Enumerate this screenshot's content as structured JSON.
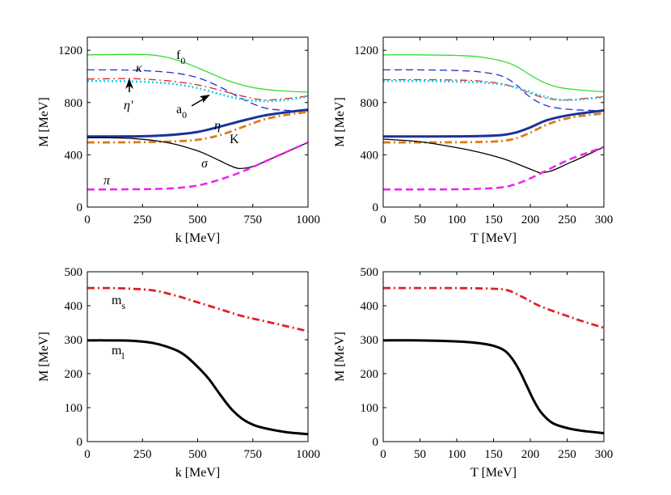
{
  "chart_data": [
    {
      "type": "line",
      "panel": "top-left",
      "xlabel": "k [MeV]",
      "ylabel": "M [MeV]",
      "xlim": [
        0,
        1000
      ],
      "ylim": [
        0,
        1300
      ],
      "xticks": [
        "0",
        "250",
        "500",
        "750",
        "1000"
      ],
      "yticks": [
        "0",
        "400",
        "800",
        "1200"
      ],
      "series": [
        {
          "name": "f0",
          "color": "#33dd33",
          "style": "solid",
          "x": [
            0,
            100,
            250,
            350,
            450,
            550,
            650,
            750,
            850,
            950,
            1000
          ],
          "y": [
            1165,
            1167,
            1168,
            1150,
            1100,
            1030,
            960,
            915,
            893,
            883,
            880
          ]
        },
        {
          "name": "kappa",
          "color": "#2233cc",
          "style": "dashed",
          "x": [
            0,
            100,
            200,
            300,
            400,
            500,
            600,
            700,
            800,
            900,
            1000
          ],
          "y": [
            1050,
            1050,
            1048,
            1040,
            1025,
            990,
            920,
            830,
            760,
            740,
            735
          ]
        },
        {
          "name": "a0",
          "color": "#dd2222",
          "style": "dashdot",
          "x": [
            0,
            100,
            200,
            300,
            400,
            500,
            600,
            700,
            800,
            900,
            1000
          ],
          "y": [
            980,
            982,
            983,
            975,
            960,
            935,
            895,
            850,
            820,
            830,
            850
          ]
        },
        {
          "name": "eta-prime",
          "color": "#22ccee",
          "style": "dotted",
          "x": [
            0,
            100,
            200,
            300,
            400,
            500,
            600,
            700,
            800,
            900,
            1000
          ],
          "y": [
            965,
            965,
            962,
            955,
            940,
            910,
            865,
            825,
            810,
            820,
            845
          ]
        },
        {
          "name": "eta",
          "color": "#1a3399",
          "style": "thick",
          "x": [
            0,
            100,
            200,
            300,
            400,
            500,
            600,
            700,
            800,
            900,
            1000
          ],
          "y": [
            540,
            540,
            541,
            545,
            555,
            575,
            615,
            660,
            700,
            725,
            745
          ]
        },
        {
          "name": "K",
          "color": "#d97d1a",
          "style": "dashdot-thick",
          "x": [
            0,
            100,
            200,
            300,
            400,
            500,
            600,
            700,
            800,
            900,
            1000
          ],
          "y": [
            495,
            495,
            496,
            498,
            503,
            515,
            550,
            610,
            670,
            705,
            728
          ]
        },
        {
          "name": "sigma",
          "color": "#000000",
          "style": "solid",
          "x": [
            0,
            100,
            200,
            300,
            400,
            500,
            550,
            600,
            650,
            690,
            750,
            800,
            900,
            1000
          ],
          "y": [
            530,
            530,
            525,
            510,
            480,
            430,
            395,
            355,
            315,
            295,
            310,
            345,
            420,
            495
          ]
        },
        {
          "name": "pi",
          "color": "#ee22ee",
          "style": "dashed-thick",
          "x": [
            0,
            100,
            200,
            300,
            400,
            500,
            600,
            700,
            800,
            900,
            1000
          ],
          "y": [
            135,
            135,
            136,
            138,
            145,
            165,
            210,
            270,
            345,
            420,
            495
          ]
        }
      ],
      "labels": {
        "f0": "f",
        "f0_sub": "0",
        "kappa": "κ",
        "eta_prime": "η'",
        "a0": "a",
        "a0_sub": "0",
        "eta": "η",
        "K": "K",
        "sigma": "σ",
        "pi": "π"
      }
    },
    {
      "type": "line",
      "panel": "top-right",
      "xlabel": "T [MeV]",
      "ylabel": "M [MeV]",
      "xlim": [
        0,
        300
      ],
      "ylim": [
        0,
        1300
      ],
      "xticks": [
        "0",
        "50",
        "100",
        "150",
        "200",
        "250",
        "300"
      ],
      "yticks": [
        "0",
        "400",
        "800",
        "1200"
      ],
      "series": [
        {
          "name": "f0",
          "color": "#33dd33",
          "style": "solid",
          "x": [
            0,
            50,
            100,
            130,
            160,
            180,
            200,
            220,
            240,
            260,
            280,
            300
          ],
          "y": [
            1165,
            1165,
            1160,
            1150,
            1120,
            1080,
            1010,
            950,
            915,
            900,
            890,
            883
          ]
        },
        {
          "name": "kappa",
          "color": "#2233cc",
          "style": "dashed",
          "x": [
            0,
            50,
            100,
            130,
            160,
            180,
            200,
            220,
            240,
            260,
            280,
            300
          ],
          "y": [
            1050,
            1050,
            1045,
            1035,
            1005,
            940,
            840,
            780,
            755,
            745,
            740,
            738
          ]
        },
        {
          "name": "a0",
          "color": "#dd2222",
          "style": "dashdot",
          "x": [
            0,
            50,
            100,
            130,
            160,
            180,
            200,
            220,
            240,
            260,
            280,
            300
          ],
          "y": [
            975,
            975,
            972,
            965,
            945,
            915,
            870,
            835,
            820,
            825,
            835,
            845
          ]
        },
        {
          "name": "eta-prime",
          "color": "#22ccee",
          "style": "dotted",
          "x": [
            0,
            50,
            100,
            130,
            160,
            180,
            200,
            220,
            240,
            260,
            280,
            300
          ],
          "y": [
            965,
            965,
            960,
            955,
            940,
            915,
            880,
            845,
            820,
            820,
            830,
            840
          ]
        },
        {
          "name": "eta",
          "color": "#1a3399",
          "style": "thick",
          "x": [
            0,
            50,
            100,
            130,
            160,
            180,
            200,
            220,
            240,
            260,
            280,
            300
          ],
          "y": [
            540,
            540,
            541,
            543,
            550,
            570,
            610,
            660,
            690,
            710,
            725,
            740
          ]
        },
        {
          "name": "K",
          "color": "#d97d1a",
          "style": "dashdot-thick",
          "x": [
            0,
            50,
            100,
            130,
            160,
            180,
            200,
            220,
            240,
            260,
            280,
            300
          ],
          "y": [
            495,
            495,
            496,
            498,
            505,
            525,
            570,
            625,
            665,
            690,
            705,
            718
          ]
        },
        {
          "name": "sigma",
          "color": "#000000",
          "style": "solid",
          "x": [
            0,
            50,
            100,
            130,
            160,
            180,
            200,
            210,
            215,
            230,
            250,
            270,
            300
          ],
          "y": [
            520,
            500,
            455,
            420,
            375,
            335,
            290,
            268,
            262,
            280,
            330,
            380,
            460
          ]
        },
        {
          "name": "pi",
          "color": "#ee22ee",
          "style": "dashed-thick",
          "x": [
            0,
            50,
            100,
            130,
            160,
            180,
            200,
            220,
            240,
            260,
            280,
            300
          ],
          "y": [
            135,
            135,
            136,
            140,
            150,
            175,
            220,
            275,
            330,
            380,
            420,
            460
          ]
        }
      ]
    },
    {
      "type": "line",
      "panel": "bottom-left",
      "xlabel": "k [MeV]",
      "ylabel": "M [MeV]",
      "xlim": [
        0,
        1000
      ],
      "ylim": [
        0,
        500
      ],
      "xticks": [
        "0",
        "250",
        "500",
        "750",
        "1000"
      ],
      "yticks": [
        "0",
        "100",
        "200",
        "300",
        "400",
        "500"
      ],
      "series": [
        {
          "name": "ms",
          "color": "#dd2222",
          "style": "dashdot-thick",
          "x": [
            0,
            100,
            200,
            300,
            400,
            500,
            600,
            700,
            800,
            900,
            1000
          ],
          "y": [
            452,
            452,
            450,
            445,
            430,
            410,
            390,
            370,
            355,
            340,
            325
          ]
        },
        {
          "name": "ml",
          "color": "#000000",
          "style": "thick",
          "x": [
            0,
            100,
            200,
            300,
            400,
            450,
            500,
            550,
            600,
            650,
            700,
            750,
            800,
            900,
            1000
          ],
          "y": [
            298,
            298,
            297,
            290,
            270,
            250,
            220,
            185,
            140,
            98,
            68,
            50,
            40,
            28,
            22
          ]
        }
      ],
      "labels": {
        "ms": "m",
        "ms_sub": "s",
        "ml": "m",
        "ml_sub": "l"
      }
    },
    {
      "type": "line",
      "panel": "bottom-right",
      "xlabel": "T [MeV]",
      "ylabel": "M [MeV]",
      "xlim": [
        0,
        300
      ],
      "ylim": [
        0,
        500
      ],
      "xticks": [
        "0",
        "50",
        "100",
        "150",
        "200",
        "250",
        "300"
      ],
      "yticks": [
        "0",
        "100",
        "200",
        "300",
        "400",
        "500"
      ],
      "series": [
        {
          "name": "ms",
          "color": "#dd2222",
          "style": "dashdot-thick",
          "x": [
            0,
            50,
            100,
            150,
            170,
            190,
            210,
            230,
            250,
            270,
            300
          ],
          "y": [
            452,
            452,
            452,
            450,
            445,
            425,
            402,
            385,
            370,
            355,
            335
          ]
        },
        {
          "name": "ml",
          "color": "#000000",
          "style": "thick",
          "x": [
            0,
            50,
            100,
            130,
            150,
            165,
            175,
            185,
            195,
            205,
            215,
            230,
            250,
            270,
            300
          ],
          "y": [
            298,
            298,
            295,
            290,
            282,
            268,
            245,
            210,
            165,
            120,
            85,
            55,
            40,
            32,
            25
          ]
        }
      ]
    }
  ]
}
